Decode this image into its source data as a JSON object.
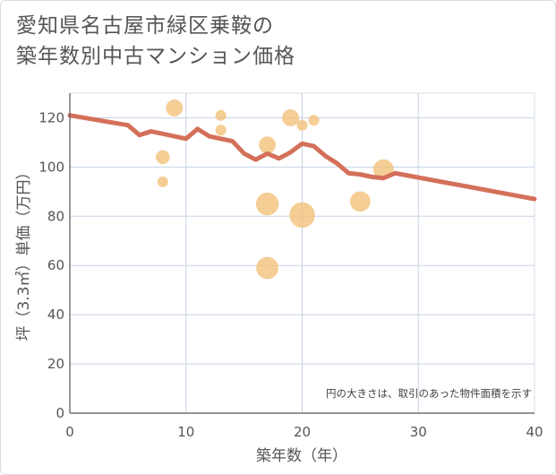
{
  "title": "愛知県名古屋市緑区乗鞍の\n築年数別中古マンション価格",
  "chart_data": {
    "type": "scatter",
    "xlabel": "築年数（年）",
    "ylabel": "坪（3.3㎡）単価（万円）",
    "xlim": [
      0,
      40
    ],
    "ylim": [
      0,
      130
    ],
    "xticks": [
      0,
      10,
      20,
      30,
      40
    ],
    "yticks": [
      0,
      20,
      40,
      60,
      80,
      100,
      120
    ],
    "grid": true,
    "note": "円の大きさは、取引のあった物件面積を示す",
    "colors": {
      "bubble": "#f3c27a",
      "line": "#d4705a",
      "grid": "#c5d3e3"
    },
    "points": [
      {
        "x": 8,
        "y": 104,
        "size": 1.5
      },
      {
        "x": 8,
        "y": 94,
        "size": 0.9
      },
      {
        "x": 9,
        "y": 124,
        "size": 2.2
      },
      {
        "x": 13,
        "y": 121,
        "size": 0.9
      },
      {
        "x": 13,
        "y": 115,
        "size": 0.9
      },
      {
        "x": 17,
        "y": 109,
        "size": 2.2
      },
      {
        "x": 17,
        "y": 85,
        "size": 4.0
      },
      {
        "x": 17,
        "y": 59,
        "size": 3.8
      },
      {
        "x": 19,
        "y": 120,
        "size": 2.2
      },
      {
        "x": 20,
        "y": 117,
        "size": 0.9
      },
      {
        "x": 20,
        "y": 80.5,
        "size": 5.0
      },
      {
        "x": 21,
        "y": 119,
        "size": 0.9
      },
      {
        "x": 25,
        "y": 86,
        "size": 3.2
      },
      {
        "x": 27,
        "y": 99,
        "size": 3.2
      }
    ],
    "trend": {
      "x": [
        0,
        5,
        6,
        7,
        8,
        9,
        10,
        11,
        12,
        13,
        14,
        15,
        16,
        17,
        18,
        19,
        20,
        21,
        22,
        23,
        24,
        25,
        26,
        27,
        28,
        40
      ],
      "y": [
        121,
        117,
        113,
        114.5,
        113.5,
        112.5,
        111.5,
        115.5,
        112.5,
        111.5,
        110.5,
        105.5,
        103,
        105.5,
        103.5,
        106,
        109.5,
        108.5,
        104.5,
        101.5,
        97.5,
        97,
        96,
        95.5,
        97.5,
        87
      ]
    }
  }
}
